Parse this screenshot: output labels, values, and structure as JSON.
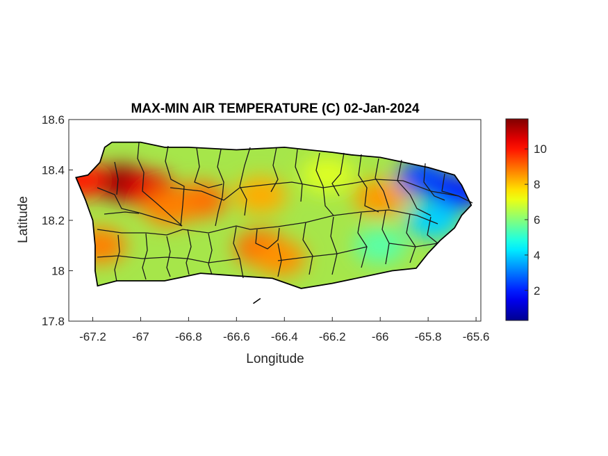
{
  "title": "MAX-MIN AIR TEMPERATURE (C) 02-Jan-2024",
  "xlabel": "Longitude",
  "ylabel": "Latitude",
  "x_ticks": [
    "-67.2",
    "-67",
    "-66.8",
    "-66.6",
    "-66.4",
    "-66.2",
    "-66",
    "-65.8",
    "-65.6"
  ],
  "y_ticks": [
    "18.6",
    "18.4",
    "18.2",
    "18",
    "17.8"
  ],
  "colorbar": {
    "ticks": [
      "10",
      "8",
      "6",
      "4",
      "2"
    ],
    "range": [
      0.3,
      11.7
    ],
    "colormap": "jet",
    "colors": [
      "#00008f",
      "#0000ff",
      "#00ffff",
      "#ffff00",
      "#ff0000",
      "#800000"
    ]
  },
  "chart_data": {
    "type": "heatmap",
    "title": "MAX-MIN AIR TEMPERATURE (C) 02-Jan-2024",
    "xlabel": "Longitude",
    "ylabel": "Latitude",
    "xlim": [
      -67.3,
      -65.58
    ],
    "ylim": [
      17.8,
      18.6
    ],
    "units": "C",
    "region_outline": [
      [
        -67.27,
        18.37
      ],
      [
        -67.22,
        18.38
      ],
      [
        -67.17,
        18.43
      ],
      [
        -67.15,
        18.49
      ],
      [
        -67.12,
        18.51
      ],
      [
        -67.0,
        18.51
      ],
      [
        -66.9,
        18.49
      ],
      [
        -66.8,
        18.49
      ],
      [
        -66.6,
        18.48
      ],
      [
        -66.4,
        18.49
      ],
      [
        -66.2,
        18.47
      ],
      [
        -66.12,
        18.46
      ],
      [
        -66.0,
        18.45
      ],
      [
        -65.9,
        18.43
      ],
      [
        -65.8,
        18.41
      ],
      [
        -65.69,
        18.38
      ],
      [
        -65.66,
        18.34
      ],
      [
        -65.62,
        18.26
      ],
      [
        -65.66,
        18.22
      ],
      [
        -65.69,
        18.17
      ],
      [
        -65.75,
        18.12
      ],
      [
        -65.8,
        18.07
      ],
      [
        -65.85,
        18.01
      ],
      [
        -65.95,
        18.0
      ],
      [
        -66.05,
        17.98
      ],
      [
        -66.2,
        17.95
      ],
      [
        -66.33,
        17.93
      ],
      [
        -66.45,
        17.97
      ],
      [
        -66.6,
        17.98
      ],
      [
        -66.75,
        17.99
      ],
      [
        -66.9,
        17.96
      ],
      [
        -66.97,
        17.96
      ],
      [
        -67.1,
        17.96
      ],
      [
        -67.18,
        17.94
      ],
      [
        -67.19,
        18.0
      ],
      [
        -67.19,
        18.1
      ],
      [
        -67.2,
        18.2
      ],
      [
        -67.23,
        18.28
      ],
      [
        -67.27,
        18.37
      ]
    ],
    "islet": [
      [
        -66.5,
        17.89
      ],
      [
        -66.53,
        17.87
      ]
    ],
    "field_features": [
      {
        "lon": -67.08,
        "lat": 18.35,
        "value": 11.5
      },
      {
        "lon": -66.96,
        "lat": 18.32,
        "value": 10.5
      },
      {
        "lon": -67.25,
        "lat": 18.36,
        "value": 10.0
      },
      {
        "lon": -66.75,
        "lat": 18.28,
        "value": 9.0
      },
      {
        "lon": -66.88,
        "lat": 18.25,
        "value": 8.8
      },
      {
        "lon": -66.5,
        "lat": 18.3,
        "value": 8.3
      },
      {
        "lon": -66.5,
        "lat": 18.09,
        "value": 9.0
      },
      {
        "lon": -66.42,
        "lat": 18.05,
        "value": 8.6
      },
      {
        "lon": -67.17,
        "lat": 18.1,
        "value": 8.8
      },
      {
        "lon": -66.0,
        "lat": 18.29,
        "value": 8.5
      },
      {
        "lon": -66.22,
        "lat": 18.38,
        "value": 7.0
      },
      {
        "lon": -66.0,
        "lat": 18.1,
        "value": 5.5
      },
      {
        "lon": -65.82,
        "lat": 18.37,
        "value": 2.5
      },
      {
        "lon": -65.68,
        "lat": 18.31,
        "value": 2.0
      },
      {
        "lon": -65.78,
        "lat": 18.2,
        "value": 4.0
      }
    ]
  }
}
